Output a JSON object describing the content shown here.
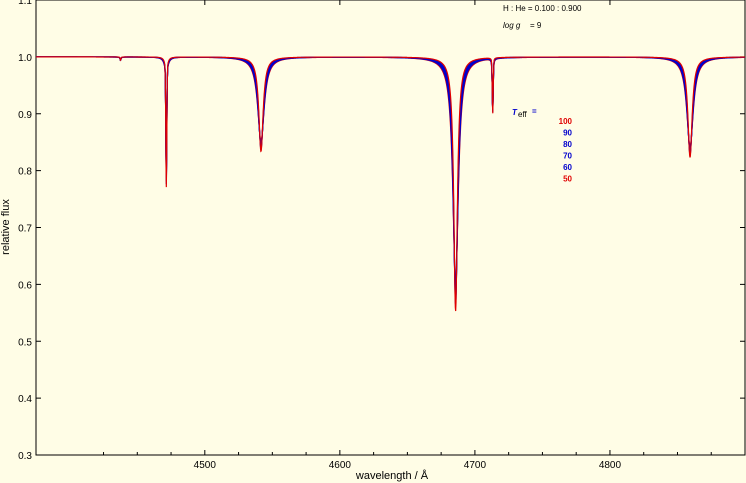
{
  "chart_data": {
    "type": "line",
    "xlabel": "wavelength / Å",
    "ylabel": "relative flux",
    "xlim": [
      4400,
      4900
    ],
    "ylim": [
      0.3,
      1.1
    ],
    "x_ticks": [
      4500,
      4600,
      4700,
      4800
    ],
    "y_ticks": [
      0.3,
      0.4,
      0.5,
      0.6,
      0.7,
      0.8,
      0.9,
      1.0,
      1.1
    ],
    "y_tick_labels": [
      "0.3",
      "0.4",
      "0.5",
      "0.6",
      "0.7",
      "0.8",
      "0.9",
      "1.0",
      "1.1"
    ],
    "grid": false,
    "annotations": {
      "composition": "H : He = 0.100 : 0.900",
      "logg_label": "log g",
      "logg_value": "= 9",
      "teff_label": "T",
      "teff_sub": "eff",
      "teff_eq": "="
    },
    "legend_placement": "right-center",
    "series": [
      {
        "name": "100",
        "color": "#e00000"
      },
      {
        "name": "90",
        "color": "#0000cc"
      },
      {
        "name": "80",
        "color": "#0000cc"
      },
      {
        "name": "70",
        "color": "#0000cc"
      },
      {
        "name": "60",
        "color": "#0000cc"
      },
      {
        "name": "50",
        "color": "#e00000"
      }
    ],
    "lines": [
      {
        "center": 4471.5,
        "depth": 0.03,
        "width": 1.2,
        "core_min": 0.78
      },
      {
        "center": 4541.6,
        "depth": 0.16,
        "width": 2.4
      },
      {
        "center": 4685.7,
        "depth": 0.43,
        "width": 2.0
      },
      {
        "center": 4713.2,
        "depth": 0.03,
        "width": 0.5,
        "core_min": 0.905
      },
      {
        "center": 4859.3,
        "depth": 0.17,
        "width": 2.4
      },
      {
        "center": 4437.6,
        "depth": 0.006,
        "width": 0.4
      }
    ]
  }
}
